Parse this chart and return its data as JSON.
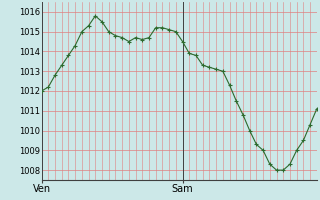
{
  "y_values": [
    1012.0,
    1012.2,
    1012.8,
    1013.3,
    1013.8,
    1014.3,
    1015.0,
    1015.3,
    1015.8,
    1015.5,
    1015.0,
    1014.8,
    1014.7,
    1014.5,
    1014.7,
    1014.6,
    1014.7,
    1015.2,
    1015.2,
    1015.1,
    1015.0,
    1014.5,
    1013.9,
    1013.8,
    1013.3,
    1013.2,
    1013.1,
    1013.0,
    1012.3,
    1011.5,
    1010.8,
    1010.0,
    1009.3,
    1009.0,
    1008.3,
    1008.0,
    1008.0,
    1008.3,
    1009.0,
    1009.5,
    1010.3,
    1011.1
  ],
  "ven_index": 0,
  "sam_index": 21,
  "ylim_min": 1007.5,
  "ylim_max": 1016.5,
  "yticks": [
    1008,
    1009,
    1010,
    1011,
    1012,
    1013,
    1014,
    1015,
    1016
  ],
  "line_color": "#2d6a2d",
  "marker_color": "#2d6a2d",
  "bg_color": "#cce8e8",
  "grid_color_red": "#e08080",
  "grid_color_minor_x": "#b8d4d4",
  "label_ven": "Ven",
  "label_sam": "Sam",
  "tick_label_fontsize": 6.0,
  "day_label_fontsize": 7.0
}
